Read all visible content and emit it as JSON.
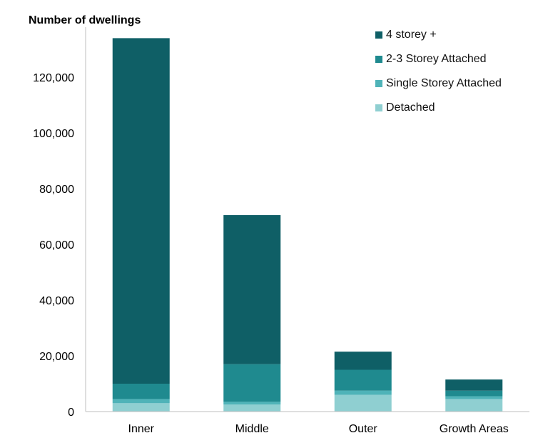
{
  "chart_data": {
    "type": "bar",
    "stacked": true,
    "ylabel": "Number of dwellings",
    "xlabel": "",
    "categories": [
      "Inner",
      "Middle",
      "Outer",
      "Growth Areas"
    ],
    "ylim": [
      0,
      135000
    ],
    "yticks": [
      "0",
      "20,000",
      "40,000",
      "60,000",
      "80,000",
      "100,000",
      "120,000"
    ],
    "yticks_values": [
      0,
      20000,
      40000,
      60000,
      80000,
      100000,
      120000
    ],
    "legend_position": "top-right",
    "series": [
      {
        "name": "Detached",
        "color": "#8fcfd1",
        "values": [
          3000,
          2500,
          6000,
          4500
        ]
      },
      {
        "name": "Single Storey Attached",
        "color": "#4fb3b8",
        "values": [
          1500,
          1000,
          1500,
          1000
        ]
      },
      {
        "name": "2-3 Storey Attached",
        "color": "#1f8a8f",
        "values": [
          5500,
          13500,
          7500,
          2000
        ]
      },
      {
        "name": "4 storey +",
        "color": "#0f5f66",
        "values": [
          124000,
          53500,
          6500,
          4000
        ]
      }
    ]
  }
}
